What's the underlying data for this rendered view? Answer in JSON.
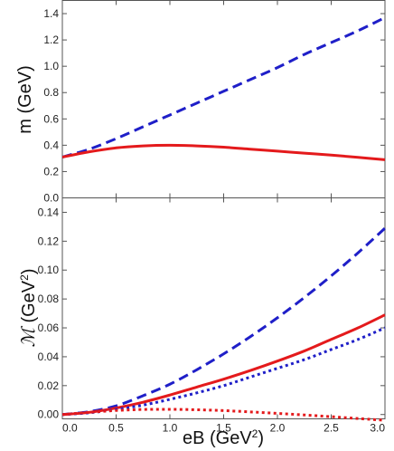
{
  "chart_data": [
    {
      "type": "line",
      "title": "",
      "xlabel": "",
      "ylabel_main": "m",
      "ylabel_unit": "(GeV)",
      "xlim": [
        0,
        3
      ],
      "ylim": [
        0,
        1.5
      ],
      "yticks": [
        0.0,
        0.2,
        0.4,
        0.6,
        0.8,
        1.0,
        1.2,
        1.4
      ],
      "ytick_labels": [
        "0.0",
        "0.2",
        "0.4",
        "0.6",
        "0.8",
        "1.0",
        "1.2",
        "1.4"
      ],
      "grid": false,
      "series": [
        {
          "color": "#1f1fc8",
          "style": "dashed",
          "x": [
            0,
            0.25,
            0.5,
            0.75,
            1.0,
            1.25,
            1.5,
            1.75,
            2.0,
            2.25,
            2.5,
            2.75,
            3.0
          ],
          "y": [
            0.31,
            0.37,
            0.45,
            0.54,
            0.63,
            0.72,
            0.81,
            0.9,
            0.99,
            1.09,
            1.18,
            1.27,
            1.37
          ]
        },
        {
          "color": "#e41a1c",
          "style": "solid",
          "x": [
            0,
            0.25,
            0.5,
            0.75,
            1.0,
            1.25,
            1.5,
            1.75,
            2.0,
            2.25,
            2.5,
            2.75,
            3.0
          ],
          "y": [
            0.31,
            0.35,
            0.38,
            0.395,
            0.4,
            0.395,
            0.385,
            0.37,
            0.355,
            0.34,
            0.325,
            0.308,
            0.29
          ]
        }
      ]
    },
    {
      "type": "line",
      "title": "",
      "xlabel_main": "eB",
      "xlabel_unit": "(GeV",
      "xlabel_sup": "2",
      "xlabel_close": ")",
      "ylabel_main": "ℳ",
      "ylabel_unit": "(GeV",
      "ylabel_sup": "2",
      "ylabel_close": ")",
      "xlim": [
        0,
        3
      ],
      "ylim": [
        -0.003,
        0.15
      ],
      "xticks": [
        0.0,
        0.5,
        1.0,
        1.5,
        2.0,
        2.5,
        3.0
      ],
      "xtick_labels": [
        "0.0",
        "0.5",
        "1.0",
        "1.5",
        "2.0",
        "2.5",
        "3.0"
      ],
      "yticks": [
        0.0,
        0.02,
        0.04,
        0.06,
        0.08,
        0.1,
        0.12,
        0.14
      ],
      "ytick_labels": [
        "0.00",
        "0.02",
        "0.04",
        "0.06",
        "0.08",
        "0.10",
        "0.12",
        "0.14"
      ],
      "grid": false,
      "series": [
        {
          "color": "#1f1fc8",
          "style": "dashed",
          "x": [
            0,
            0.25,
            0.5,
            0.75,
            1.0,
            1.25,
            1.5,
            1.75,
            2.0,
            2.25,
            2.5,
            2.75,
            3.0
          ],
          "y": [
            0,
            0.002,
            0.006,
            0.013,
            0.021,
            0.031,
            0.042,
            0.054,
            0.067,
            0.081,
            0.096,
            0.112,
            0.129
          ]
        },
        {
          "color": "#e41a1c",
          "style": "solid",
          "x": [
            0,
            0.25,
            0.5,
            0.75,
            1.0,
            1.25,
            1.5,
            1.75,
            2.0,
            2.25,
            2.5,
            2.75,
            3.0
          ],
          "y": [
            0,
            0.0015,
            0.0045,
            0.0085,
            0.0135,
            0.019,
            0.0245,
            0.0305,
            0.037,
            0.044,
            0.052,
            0.06,
            0.069
          ]
        },
        {
          "color": "#1f1fc8",
          "style": "dotted",
          "x": [
            0,
            0.25,
            0.5,
            0.75,
            1.0,
            1.25,
            1.5,
            1.75,
            2.0,
            2.25,
            2.5,
            2.75,
            3.0
          ],
          "y": [
            0,
            0.0012,
            0.0035,
            0.0065,
            0.0105,
            0.015,
            0.02,
            0.026,
            0.032,
            0.038,
            0.045,
            0.052,
            0.06
          ]
        },
        {
          "color": "#e41a1c",
          "style": "dotted",
          "x": [
            0,
            0.25,
            0.5,
            0.75,
            1.0,
            1.25,
            1.5,
            1.75,
            2.0,
            2.25,
            2.5,
            2.75,
            3.0
          ],
          "y": [
            0,
            0.0015,
            0.0028,
            0.0035,
            0.0036,
            0.0033,
            0.0027,
            0.0018,
            0.0008,
            -0.0003,
            -0.0015,
            -0.0028,
            -0.004
          ]
        }
      ]
    }
  ]
}
